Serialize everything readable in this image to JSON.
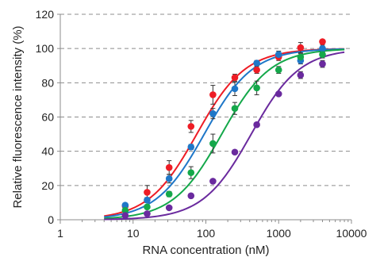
{
  "chart_data": {
    "type": "scatter",
    "xlabel": "RNA concentration (nM)",
    "ylabel": "Relative fluorescence intensity (%)",
    "xscale": "log",
    "xlim": [
      1,
      10000
    ],
    "ylim": [
      0,
      120
    ],
    "x_ticks": [
      "1",
      "10",
      "100",
      "1000",
      "10000"
    ],
    "y_ticks": [
      "0",
      "20",
      "40",
      "60",
      "80",
      "100",
      "120"
    ],
    "grid": "horizontal dashed",
    "legend": "none",
    "series": [
      {
        "color": "#ee1c25",
        "points": [
          {
            "x": 7.8,
            "y": 8,
            "err": 1.5
          },
          {
            "x": 15.6,
            "y": 16,
            "err": 4
          },
          {
            "x": 31.3,
            "y": 30.5,
            "err": 4
          },
          {
            "x": 62.5,
            "y": 54.5,
            "err": 3.5
          },
          {
            "x": 125,
            "y": 73,
            "err": 5.5
          },
          {
            "x": 250,
            "y": 83,
            "err": 2
          },
          {
            "x": 500,
            "y": 87.5,
            "err": 2
          },
          {
            "x": 1000,
            "y": 95,
            "err": 2
          },
          {
            "x": 2000,
            "y": 100.5,
            "err": 3
          },
          {
            "x": 4000,
            "y": 104,
            "err": 1
          }
        ],
        "fit": {
          "ec50": 75,
          "hill": 1.3,
          "top": 100,
          "bottom": 0
        }
      },
      {
        "color": "#1f77c8",
        "points": [
          {
            "x": 7.8,
            "y": 8.5,
            "err": 1
          },
          {
            "x": 15.6,
            "y": 11.5,
            "err": 1.5
          },
          {
            "x": 31.3,
            "y": 24,
            "err": 2.5
          },
          {
            "x": 62.5,
            "y": 42.5,
            "err": 1.5
          },
          {
            "x": 125,
            "y": 62,
            "err": 3
          },
          {
            "x": 250,
            "y": 76.5,
            "err": 4
          },
          {
            "x": 500,
            "y": 91.5,
            "err": 1.5
          },
          {
            "x": 1000,
            "y": 96.5,
            "err": 2
          },
          {
            "x": 2000,
            "y": 93,
            "err": 2
          },
          {
            "x": 4000,
            "y": 100,
            "err": 2
          }
        ],
        "fit": {
          "ec50": 95,
          "hill": 1.3,
          "top": 100,
          "bottom": 0
        }
      },
      {
        "color": "#14a84a",
        "points": [
          {
            "x": 7.8,
            "y": 5.5,
            "err": 1
          },
          {
            "x": 15.6,
            "y": 7.5,
            "err": 1
          },
          {
            "x": 31.3,
            "y": 15,
            "err": 1.5
          },
          {
            "x": 62.5,
            "y": 27.5,
            "err": 3.5
          },
          {
            "x": 125,
            "y": 44.5,
            "err": 5.5
          },
          {
            "x": 250,
            "y": 65,
            "err": 3.5
          },
          {
            "x": 500,
            "y": 77,
            "err": 4
          },
          {
            "x": 1000,
            "y": 87.5,
            "err": 2
          },
          {
            "x": 2000,
            "y": 95,
            "err": 2
          },
          {
            "x": 4000,
            "y": 96.5,
            "err": 2
          }
        ],
        "fit": {
          "ec50": 165,
          "hill": 1.3,
          "top": 100,
          "bottom": 0
        }
      },
      {
        "color": "#6a2a9e",
        "points": [
          {
            "x": 7.8,
            "y": 2.5,
            "err": 0.5
          },
          {
            "x": 15.6,
            "y": 3.5,
            "err": 0.5
          },
          {
            "x": 31.3,
            "y": 7,
            "err": 0.5
          },
          {
            "x": 62.5,
            "y": 14,
            "err": 0.5
          },
          {
            "x": 125,
            "y": 22.5,
            "err": 0.5
          },
          {
            "x": 250,
            "y": 39.5,
            "err": 0.5
          },
          {
            "x": 500,
            "y": 55.5,
            "err": 1
          },
          {
            "x": 1000,
            "y": 73.5,
            "err": 1
          },
          {
            "x": 2000,
            "y": 84.5,
            "err": 2
          },
          {
            "x": 4000,
            "y": 91,
            "err": 2
          }
        ],
        "fit": {
          "ec50": 420,
          "hill": 1.3,
          "top": 100,
          "bottom": 0
        }
      }
    ]
  }
}
